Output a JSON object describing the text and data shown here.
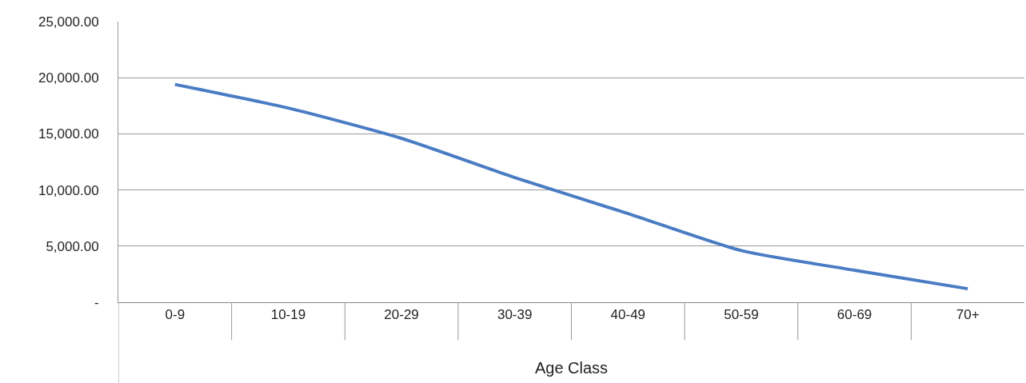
{
  "chart_data": {
    "type": "line",
    "xlabel": "Age Class",
    "categories": [
      "0-9",
      "10-19",
      "20-29",
      "30-39",
      "40-49",
      "50-59",
      "60-69",
      "70+"
    ],
    "series": [
      {
        "color": "#4a7cc4",
        "values": [
          19400,
          17300,
          14600,
          11100,
          7900,
          4600,
          2850,
          1200
        ]
      }
    ],
    "ylim": [
      0,
      25000
    ],
    "yticks": [
      {
        "value": 0,
        "label": "-"
      },
      {
        "value": 5000,
        "label": "5,000.00"
      },
      {
        "value": 10000,
        "label": "10,000.00"
      },
      {
        "value": 15000,
        "label": "15,000.00"
      },
      {
        "value": 20000,
        "label": "20,000.00"
      },
      {
        "value": 25000,
        "label": "25,000.00"
      }
    ],
    "grid": "y",
    "marker": "none",
    "line_style": "solid"
  }
}
